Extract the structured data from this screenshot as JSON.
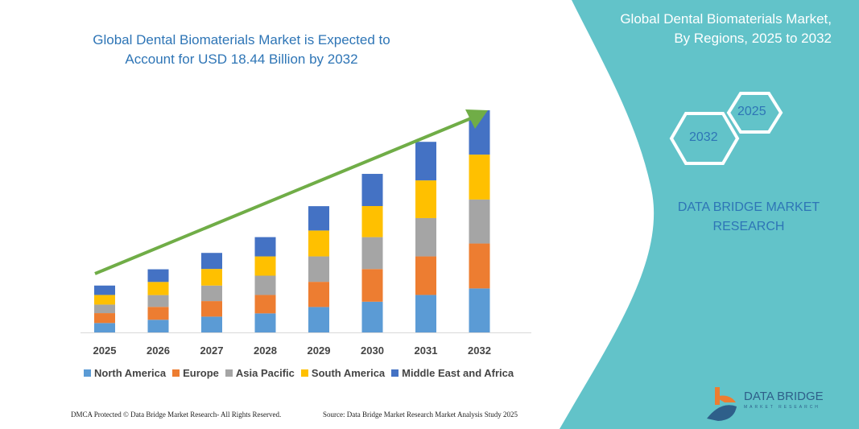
{
  "header": {
    "title": "Global Dental Biomaterials Market is Expected to Account for USD 18.44 Billion by 2032"
  },
  "side_panel": {
    "title_line1": "Global Dental Biomaterials Market,",
    "title_line2": "By Regions, 2025 to 2032",
    "hex_1": "2025",
    "hex_2": "2032",
    "brand_line1": "DATA BRIDGE MARKET",
    "brand_line2": "RESEARCH",
    "color": "#62c3c9"
  },
  "logo": {
    "name": "DATA BRIDGE",
    "sub": "MARKET RESEARCH"
  },
  "footer": {
    "copyright": "DMCA Protected © Data Bridge Market Research- All Rights Reserved.",
    "source": "Source: Data Bridge Market Research Market Analysis Study 2025"
  },
  "chart_data": {
    "type": "bar",
    "stacked": true,
    "title": "Global Dental Biomaterials Market is Expected to Account for USD 18.44 Billion by 2032",
    "categories": [
      "2025",
      "2026",
      "2027",
      "2028",
      "2029",
      "2030",
      "2031",
      "2032"
    ],
    "series": [
      {
        "name": "North America",
        "color": "#5b9bd5",
        "values": [
          0.78,
          1.05,
          1.31,
          1.58,
          2.11,
          2.55,
          3.11,
          3.65
        ]
      },
      {
        "name": "Europe",
        "color": "#ed7d31",
        "values": [
          0.82,
          1.07,
          1.29,
          1.53,
          2.09,
          2.71,
          3.2,
          3.73
        ]
      },
      {
        "name": "Asia Pacific",
        "color": "#a5a5a5",
        "values": [
          0.71,
          0.98,
          1.29,
          1.6,
          2.11,
          2.65,
          3.18,
          3.65
        ]
      },
      {
        "name": "South America",
        "color": "#ffc000",
        "values": [
          0.8,
          1.09,
          1.38,
          1.6,
          2.15,
          2.58,
          3.13,
          3.73
        ]
      },
      {
        "name": "Middle East and Africa",
        "color": "#4472c4",
        "values": [
          0.78,
          1.05,
          1.33,
          1.6,
          2.02,
          2.67,
          3.2,
          3.68
        ]
      }
    ],
    "ylim": [
      0,
      18.44
    ],
    "y_axis_shown": false,
    "grid": false,
    "legend": "bottom",
    "trend_arrow": {
      "color": "#70ad47"
    }
  }
}
